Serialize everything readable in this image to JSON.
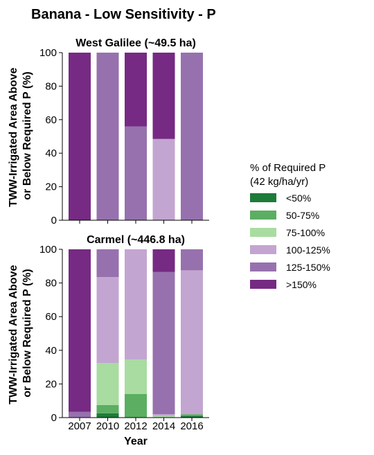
{
  "chart_data": {
    "type": "bar",
    "stacked": true,
    "title": "Banana - Low Sensitivity - P",
    "categories": [
      "2007",
      "2010",
      "2012",
      "2014",
      "2016"
    ],
    "xlabel": "Year",
    "ylabel": "TWW-Irrigated Area Above or Below Required P (%)",
    "ylabel_lines": [
      "TWW-Irrigated Area Above",
      "or Below Required P (%)"
    ],
    "ylim": [
      0,
      100
    ],
    "yticks": [
      "0",
      "20",
      "40",
      "60",
      "80",
      "100"
    ],
    "legend": {
      "title_lines": [
        "% of Required P",
        "(42 kg/ha/yr)"
      ],
      "placement": "right",
      "entries": [
        {
          "label": "<50%",
          "color": "#1e7b3a"
        },
        {
          "label": "50-75%",
          "color": "#5bae62"
        },
        {
          "label": "75-100%",
          "color": "#a8dca0"
        },
        {
          "label": "100-125%",
          "color": "#c3a5d1"
        },
        {
          "label": "125-150%",
          "color": "#9771ae"
        },
        {
          "label": ">150%",
          "color": "#762a83"
        }
      ]
    },
    "panels": [
      {
        "title": "West Galilee (~49.5 ha)",
        "series": [
          {
            "name": "<50%",
            "values": [
              0,
              0,
              0,
              0,
              0
            ]
          },
          {
            "name": "50-75%",
            "values": [
              0,
              0,
              0,
              0,
              0
            ]
          },
          {
            "name": "75-100%",
            "values": [
              0,
              0,
              0,
              0,
              0
            ]
          },
          {
            "name": "100-125%",
            "values": [
              0,
              0,
              0,
              48.5,
              0
            ]
          },
          {
            "name": "125-150%",
            "values": [
              0,
              100,
              56,
              0,
              100
            ]
          },
          {
            "name": ">150%",
            "values": [
              100,
              0,
              44,
              51.5,
              0
            ]
          }
        ]
      },
      {
        "title": "Carmel (~446.8 ha)",
        "series": [
          {
            "name": "<50%",
            "values": [
              0,
              2.5,
              0,
              0,
              1
            ]
          },
          {
            "name": "50-75%",
            "values": [
              0,
              5,
              14,
              0,
              1
            ]
          },
          {
            "name": "75-100%",
            "values": [
              0,
              25,
              20.5,
              1,
              0
            ]
          },
          {
            "name": "100-125%",
            "values": [
              0,
              51,
              65.5,
              1,
              85.5
            ]
          },
          {
            "name": "125-150%",
            "values": [
              3.5,
              16.5,
              0,
              84.5,
              12.5
            ]
          },
          {
            "name": ">150%",
            "values": [
              96.5,
              0,
              0,
              13.5,
              0
            ]
          }
        ]
      }
    ]
  }
}
